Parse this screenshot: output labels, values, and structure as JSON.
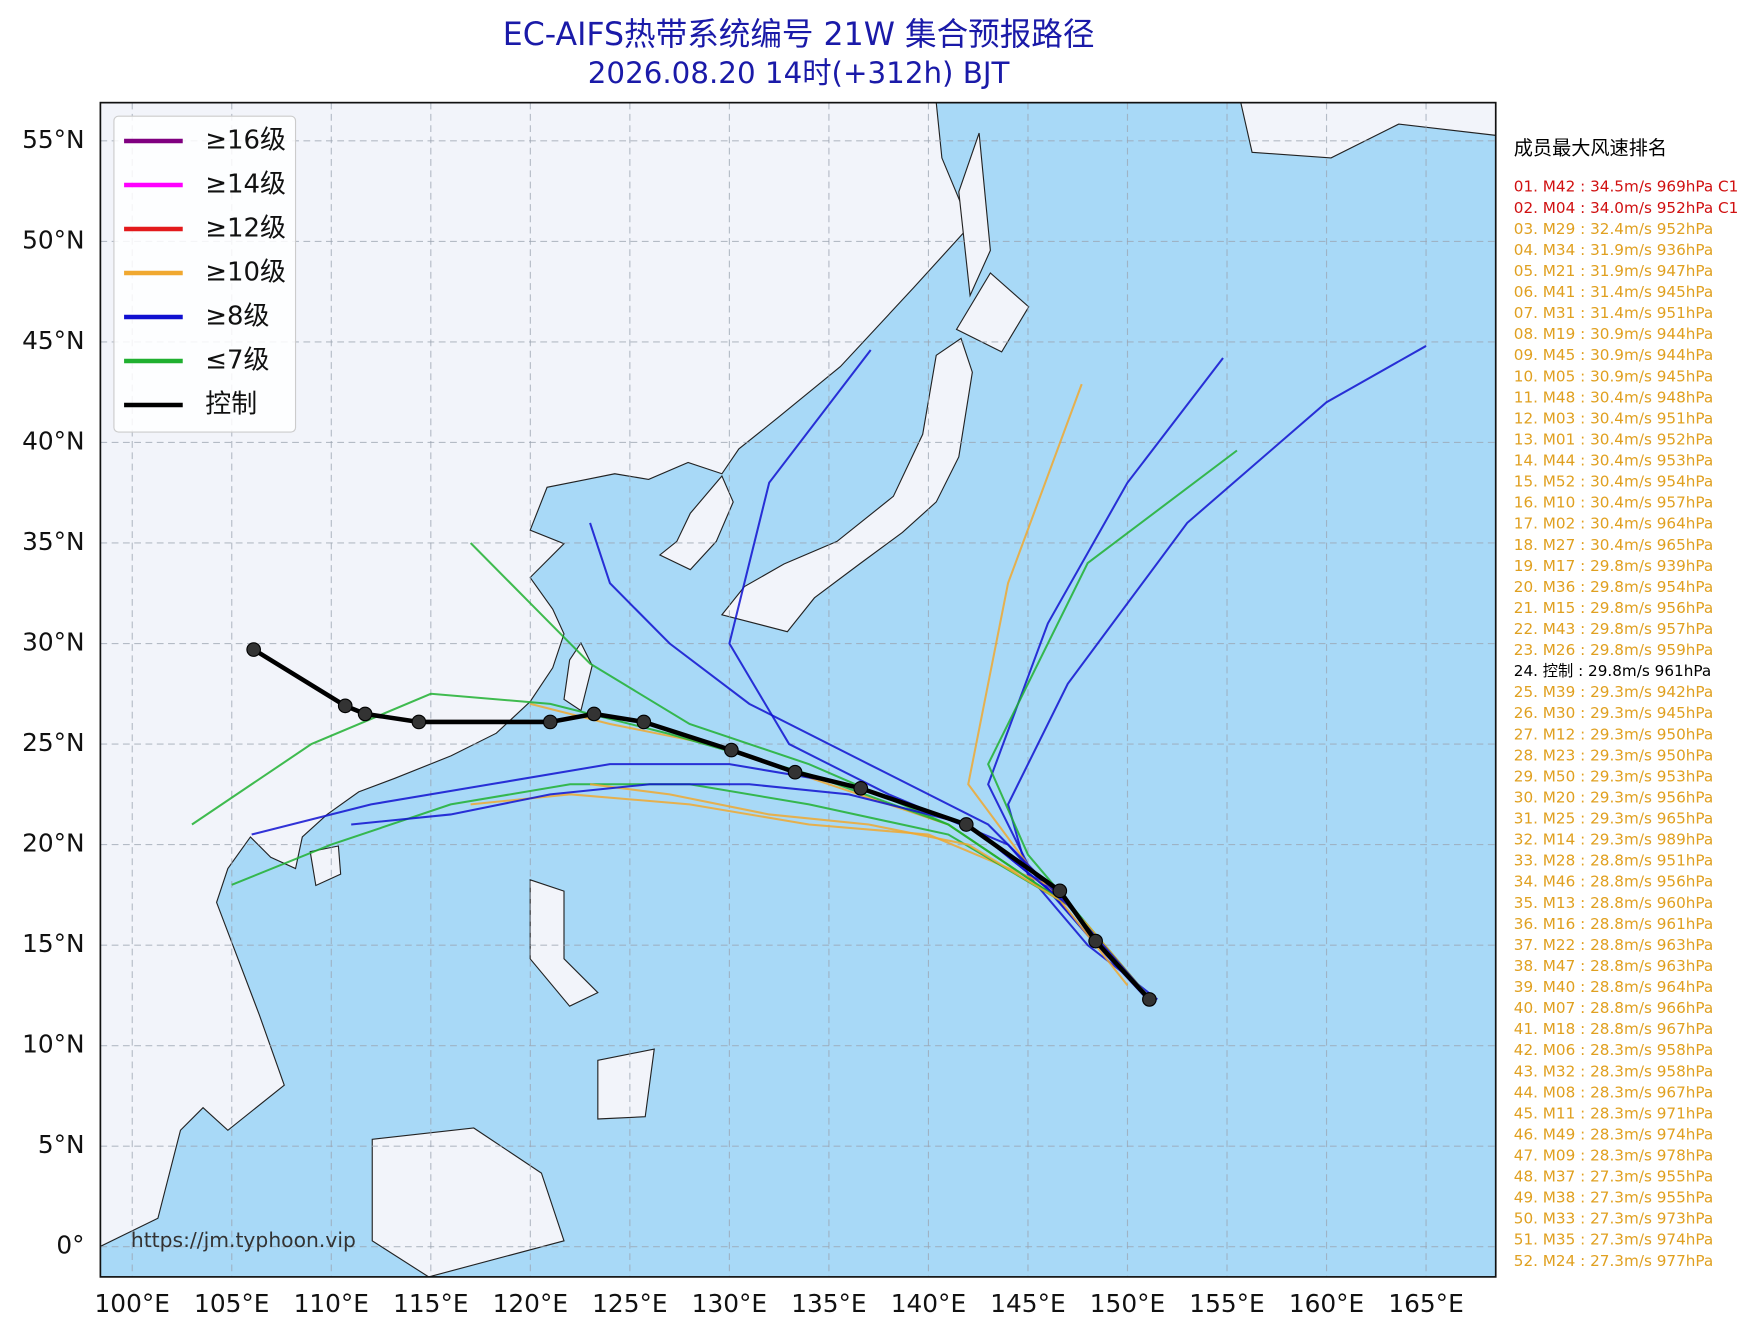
{
  "chart_data": {
    "type": "map",
    "title": "EC-AIFS热带系统编号 21W 集合预报路径",
    "subtitle": "2026.08.20 14时(+312h) BJT",
    "watermark": "https://jm.typhoon.vip",
    "xlim": [
      98.4,
      168.5
    ],
    "ylim": [
      -1.5,
      56.9
    ],
    "xticks": [
      {
        "value": 100,
        "label": "100°E"
      },
      {
        "value": 105,
        "label": "105°E"
      },
      {
        "value": 110,
        "label": "110°E"
      },
      {
        "value": 115,
        "label": "115°E"
      },
      {
        "value": 120,
        "label": "120°E"
      },
      {
        "value": 125,
        "label": "125°E"
      },
      {
        "value": 130,
        "label": "130°E"
      },
      {
        "value": 135,
        "label": "135°E"
      },
      {
        "value": 140,
        "label": "140°E"
      },
      {
        "value": 145,
        "label": "145°E"
      },
      {
        "value": 150,
        "label": "150°E"
      },
      {
        "value": 155,
        "label": "155°E"
      },
      {
        "value": 160,
        "label": "160°E"
      },
      {
        "value": 165,
        "label": "165°E"
      }
    ],
    "yticks": [
      {
        "value": 0,
        "label": "0°"
      },
      {
        "value": 5,
        "label": "5°N"
      },
      {
        "value": 10,
        "label": "10°N"
      },
      {
        "value": 15,
        "label": "15°N"
      },
      {
        "value": 20,
        "label": "20°N"
      },
      {
        "value": 25,
        "label": "25°N"
      },
      {
        "value": 30,
        "label": "30°N"
      },
      {
        "value": 35,
        "label": "35°N"
      },
      {
        "value": 40,
        "label": "40°N"
      },
      {
        "value": 45,
        "label": "45°N"
      },
      {
        "value": 50,
        "label": "50°N"
      },
      {
        "value": 55,
        "label": "55°N"
      }
    ],
    "grid": true,
    "legend_position": "upper left",
    "legend": [
      {
        "name": "≥16级",
        "color": "#800080"
      },
      {
        "name": "≥14级",
        "color": "#ff00ff"
      },
      {
        "name": "≥12级",
        "color": "#e31a1c"
      },
      {
        "name": "≥10级",
        "color": "#f0a830"
      },
      {
        "name": "≥8级",
        "color": "#1010d0"
      },
      {
        "name": "≤7级",
        "color": "#20b030"
      },
      {
        "name": "控制",
        "color": "#000000"
      }
    ],
    "control": {
      "color": "#000000",
      "lon": [
        106.1,
        110.7,
        111.7,
        114.4,
        121.0,
        123.2,
        125.7,
        130.1,
        133.3,
        136.6,
        141.9,
        146.6,
        148.4,
        151.1
      ],
      "lat": [
        29.7,
        26.9,
        26.5,
        26.1,
        26.1,
        26.5,
        26.1,
        24.7,
        23.6,
        22.8,
        21.0,
        17.7,
        15.2,
        12.3
      ]
    },
    "ensemble": [
      {
        "color": "#1010d0",
        "lon": [
          151.5,
          148,
          145,
          144,
          147,
          153,
          160,
          165
        ],
        "lat": [
          12.3,
          15,
          18.5,
          22,
          28,
          36,
          42,
          44.8
        ]
      },
      {
        "color": "#1010d0",
        "lon": [
          151,
          148,
          145,
          143,
          146,
          150,
          154.8
        ],
        "lat": [
          12.5,
          15.5,
          19,
          23,
          31,
          38,
          44.2
        ]
      },
      {
        "color": "#20b030",
        "lon": [
          151,
          148,
          145,
          143,
          148,
          155.5
        ],
        "lat": [
          12.5,
          16,
          19.5,
          24,
          34,
          39.6
        ]
      },
      {
        "color": "#f0a830",
        "lon": [
          151,
          148,
          145,
          142,
          144,
          147.7
        ],
        "lat": [
          12.5,
          16,
          19,
          23,
          33,
          42.9
        ]
      },
      {
        "color": "#1010d0",
        "lon": [
          151,
          148,
          144,
          138,
          133,
          130,
          132,
          137.1
        ],
        "lat": [
          12.3,
          15.5,
          20,
          22.5,
          25,
          30,
          38,
          44.6
        ]
      },
      {
        "color": "#f0a830",
        "lon": [
          151,
          147,
          141,
          135,
          129,
          124,
          120
        ],
        "lat": [
          12.3,
          17,
          21,
          23,
          25,
          26,
          27
        ]
      },
      {
        "color": "#1010d0",
        "lon": [
          151,
          147,
          142,
          136,
          130,
          124,
          118,
          112,
          106
        ],
        "lat": [
          12.3,
          17,
          21,
          23,
          24,
          24,
          23,
          22,
          20.5
        ]
      },
      {
        "color": "#20b030",
        "lon": [
          151,
          147,
          141,
          134,
          127,
          121,
          115,
          109,
          103
        ],
        "lat": [
          12.5,
          17,
          21,
          23.5,
          25.5,
          27,
          27.5,
          25,
          21
        ]
      },
      {
        "color": "#f0a830",
        "lon": [
          150,
          146,
          140,
          134,
          128,
          122,
          117
        ],
        "lat": [
          13,
          18,
          20.5,
          21,
          22,
          22.5,
          22
        ]
      },
      {
        "color": "#1010d0",
        "lon": [
          151,
          147,
          143,
          137,
          131,
          127,
          124,
          123
        ],
        "lat": [
          12.3,
          17,
          21,
          24,
          27,
          30,
          33,
          36
        ]
      },
      {
        "color": "#20b030",
        "lon": [
          151,
          147,
          141,
          134,
          128,
          123,
          120,
          117
        ],
        "lat": [
          12.5,
          17,
          21,
          24,
          26,
          29,
          32,
          35
        ]
      },
      {
        "color": "#20b030",
        "lon": [
          151,
          147,
          141,
          134,
          128,
          122,
          116,
          110,
          105
        ],
        "lat": [
          12.5,
          17,
          20.5,
          22,
          23,
          23,
          22,
          20,
          18
        ]
      },
      {
        "color": "#f0a830",
        "lon": [
          151,
          147,
          142,
          137,
          132,
          127,
          123
        ],
        "lat": [
          12.5,
          17,
          20,
          21,
          21.5,
          22.5,
          23
        ]
      },
      {
        "color": "#1010d0",
        "lon": [
          151,
          147,
          142,
          136,
          131,
          126,
          121,
          116,
          111
        ],
        "lat": [
          12.5,
          17,
          21,
          22.5,
          23,
          23,
          22.5,
          21.5,
          21
        ]
      }
    ],
    "ranking": {
      "title": "成员最大风速排名",
      "items": [
        {
          "text": "01. M42 : 34.5m/s 969hPa C1",
          "color": "#d01010"
        },
        {
          "text": "02. M04 : 34.0m/s 952hPa C1",
          "color": "#d01010"
        },
        {
          "text": "03. M29 : 32.4m/s 952hPa",
          "color": "#e0a020"
        },
        {
          "text": "04. M34 : 31.9m/s 936hPa",
          "color": "#e0a020"
        },
        {
          "text": "05. M21 : 31.9m/s 947hPa",
          "color": "#e0a020"
        },
        {
          "text": "06. M41 : 31.4m/s 945hPa",
          "color": "#e0a020"
        },
        {
          "text": "07. M31 : 31.4m/s 951hPa",
          "color": "#e0a020"
        },
        {
          "text": "08. M19 : 30.9m/s 944hPa",
          "color": "#e0a020"
        },
        {
          "text": "09. M45 : 30.9m/s 944hPa",
          "color": "#e0a020"
        },
        {
          "text": "10. M05 : 30.9m/s 945hPa",
          "color": "#e0a020"
        },
        {
          "text": "11. M48 : 30.4m/s 948hPa",
          "color": "#e0a020"
        },
        {
          "text": "12. M03 : 30.4m/s 951hPa",
          "color": "#e0a020"
        },
        {
          "text": "13. M01 : 30.4m/s 952hPa",
          "color": "#e0a020"
        },
        {
          "text": "14. M44 : 30.4m/s 953hPa",
          "color": "#e0a020"
        },
        {
          "text": "15. M52 : 30.4m/s 954hPa",
          "color": "#e0a020"
        },
        {
          "text": "16. M10 : 30.4m/s 957hPa",
          "color": "#e0a020"
        },
        {
          "text": "17. M02 : 30.4m/s 964hPa",
          "color": "#e0a020"
        },
        {
          "text": "18. M27 : 30.4m/s 965hPa",
          "color": "#e0a020"
        },
        {
          "text": "19. M17 : 29.8m/s 939hPa",
          "color": "#e0a020"
        },
        {
          "text": "20. M36 : 29.8m/s 954hPa",
          "color": "#e0a020"
        },
        {
          "text": "21. M15 : 29.8m/s 956hPa",
          "color": "#e0a020"
        },
        {
          "text": "22. M43 : 29.8m/s 957hPa",
          "color": "#e0a020"
        },
        {
          "text": "23. M26 : 29.8m/s 959hPa",
          "color": "#e0a020"
        },
        {
          "text": "24. 控制 : 29.8m/s 961hPa",
          "color": "#000000"
        },
        {
          "text": "25. M39 : 29.3m/s 942hPa",
          "color": "#e0a020"
        },
        {
          "text": "26. M30 : 29.3m/s 945hPa",
          "color": "#e0a020"
        },
        {
          "text": "27. M12 : 29.3m/s 950hPa",
          "color": "#e0a020"
        },
        {
          "text": "28. M23 : 29.3m/s 950hPa",
          "color": "#e0a020"
        },
        {
          "text": "29. M50 : 29.3m/s 953hPa",
          "color": "#e0a020"
        },
        {
          "text": "30. M20 : 29.3m/s 956hPa",
          "color": "#e0a020"
        },
        {
          "text": "31. M25 : 29.3m/s 965hPa",
          "color": "#e0a020"
        },
        {
          "text": "32. M14 : 29.3m/s 989hPa",
          "color": "#e0a020"
        },
        {
          "text": "33. M28 : 28.8m/s 951hPa",
          "color": "#e0a020"
        },
        {
          "text": "34. M46 : 28.8m/s 956hPa",
          "color": "#e0a020"
        },
        {
          "text": "35. M13 : 28.8m/s 960hPa",
          "color": "#e0a020"
        },
        {
          "text": "36. M16 : 28.8m/s 961hPa",
          "color": "#e0a020"
        },
        {
          "text": "37. M22 : 28.8m/s 963hPa",
          "color": "#e0a020"
        },
        {
          "text": "38. M47 : 28.8m/s 963hPa",
          "color": "#e0a020"
        },
        {
          "text": "39. M40 : 28.8m/s 964hPa",
          "color": "#e0a020"
        },
        {
          "text": "40. M07 : 28.8m/s 966hPa",
          "color": "#e0a020"
        },
        {
          "text": "41. M18 : 28.8m/s 967hPa",
          "color": "#e0a020"
        },
        {
          "text": "42. M06 : 28.3m/s 958hPa",
          "color": "#e0a020"
        },
        {
          "text": "43. M32 : 28.3m/s 958hPa",
          "color": "#e0a020"
        },
        {
          "text": "44. M08 : 28.3m/s 967hPa",
          "color": "#e0a020"
        },
        {
          "text": "45. M11 : 28.3m/s 971hPa",
          "color": "#e0a020"
        },
        {
          "text": "46. M49 : 28.3m/s 974hPa",
          "color": "#e0a020"
        },
        {
          "text": "47. M09 : 28.3m/s 978hPa",
          "color": "#e0a020"
        },
        {
          "text": "48. M37 : 27.3m/s 955hPa",
          "color": "#e0a020"
        },
        {
          "text": "49. M38 : 27.3m/s 955hPa",
          "color": "#e0a020"
        },
        {
          "text": "50. M33 : 27.3m/s 973hPa",
          "color": "#e0a020"
        },
        {
          "text": "51. M35 : 27.3m/s 974hPa",
          "color": "#e0a020"
        },
        {
          "text": "52. M24 : 27.3m/s 977hPa",
          "color": "#e0a020"
        }
      ]
    }
  }
}
